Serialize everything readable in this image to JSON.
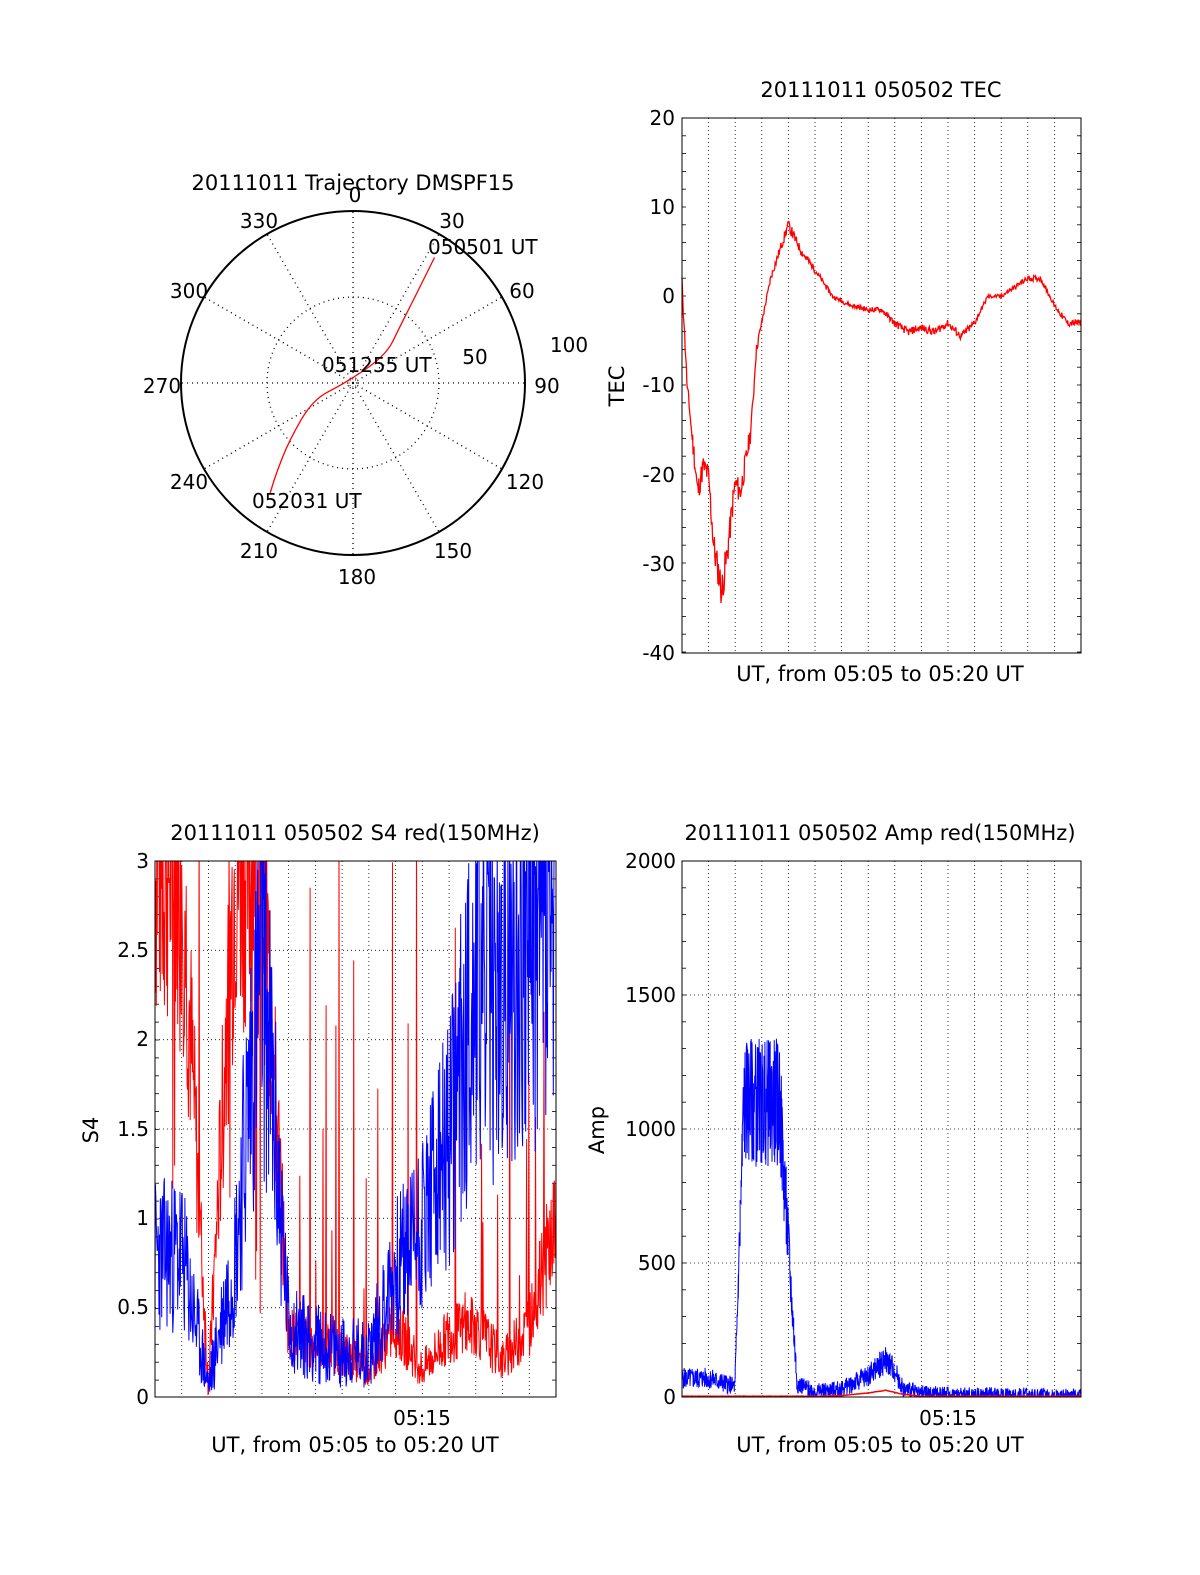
{
  "colors": {
    "red": "#ff0000",
    "blue": "#0000ff",
    "axis": "#000000",
    "grid": "#000000"
  },
  "panels": {
    "trajectory": {
      "title": "20111011 Trajectory DMSPF15",
      "angle_labels": [
        "0",
        "30",
        "60",
        "90",
        "120",
        "150",
        "180",
        "210",
        "240",
        "270",
        "300",
        "330"
      ],
      "radius_labels": [
        "50",
        "100"
      ],
      "annotations": [
        "050501 UT",
        "051255 UT",
        "052031 UT"
      ]
    },
    "tec": {
      "title": "20111011 050502 TEC",
      "ylabel": "TEC",
      "xlabel": "UT, from 05:05 to 05:20 UT",
      "yticks": [
        "20",
        "10",
        "0",
        "-10",
        "-20",
        "-30",
        "-40"
      ]
    },
    "s4": {
      "title": "20111011 050502 S4 red(150MHz)",
      "ylabel": "S4",
      "xlabel": "UT, from 05:05 to 05:20 UT",
      "xtick": "05:15",
      "yticks": [
        "3",
        "2.5",
        "2",
        "1.5",
        "1",
        "0.5",
        "0"
      ]
    },
    "amp": {
      "title": "20111011 050502 Amp red(150MHz)",
      "ylabel": "Amp",
      "xlabel": "UT, from 05:05 to 05:20 UT",
      "xtick": "05:15",
      "yticks": [
        "2000",
        "1500",
        "1000",
        "500",
        "0"
      ]
    }
  },
  "chart_data": [
    {
      "type": "scatter",
      "title": "20111011 Trajectory DMSPF15",
      "coordinate_system": "polar (azimuth degrees clockwise from north, radius = zenith angle)",
      "radial_range": [
        0,
        100
      ],
      "series": [
        {
          "points": [
            {
              "az": 33,
              "r": 87,
              "label": "050501 UT"
            },
            {
              "az": 36,
              "r": 60
            },
            {
              "az": 40,
              "r": 42
            },
            {
              "az": 50,
              "r": 25
            },
            {
              "az": 266,
              "r": 5,
              "label": "051255 UT"
            },
            {
              "az": 248,
              "r": 25
            },
            {
              "az": 228,
              "r": 50
            },
            {
              "az": 220,
              "r": 70
            },
            {
              "az": 217,
              "r": 80,
              "label": "052031 UT"
            }
          ]
        }
      ]
    },
    {
      "type": "line",
      "title": "20111011 050502 TEC",
      "xlabel": "UT, from 05:05 to 05:20 UT",
      "ylabel": "TEC",
      "xlim": [
        "05:05",
        "05:20"
      ],
      "ylim": [
        -40,
        20
      ],
      "grid": true,
      "series": [
        {
          "x": [
            "05:05:00",
            "05:05:12",
            "05:05:36",
            "05:05:48",
            "05:06:00",
            "05:06:12",
            "05:06:30",
            "05:06:42",
            "05:07:00",
            "05:07:12",
            "05:07:36",
            "05:07:48",
            "05:08:00",
            "05:08:20",
            "05:08:40",
            "05:09:00",
            "05:09:30",
            "05:10:00",
            "05:10:40",
            "05:11:20",
            "05:12:00",
            "05:12:30",
            "05:13:00",
            "05:13:30",
            "05:14:00",
            "05:14:30",
            "05:15:00",
            "05:15:30",
            "05:16:00",
            "05:16:30",
            "05:17:00",
            "05:17:30",
            "05:18:00",
            "05:18:30",
            "05:19:00",
            "05:19:30",
            "05:20:00"
          ],
          "y": [
            2,
            -10,
            -22,
            -19,
            -20,
            -28,
            -33,
            -29,
            -21,
            -22,
            -15,
            -6,
            -3,
            2,
            5,
            8,
            5,
            3,
            0,
            -1,
            -1.5,
            -1.5,
            -3,
            -4,
            -3.5,
            -4,
            -3,
            -4.5,
            -3,
            0,
            0,
            1,
            2,
            2,
            -1,
            -3,
            -3
          ]
        }
      ]
    },
    {
      "type": "line",
      "title": "20111011 050502 S4 red(150MHz)",
      "xlabel": "UT, from 05:05 to 05:20 UT",
      "ylabel": "S4",
      "xlim": [
        "05:05",
        "05:20"
      ],
      "ylim": [
        0,
        3
      ],
      "grid": true,
      "series": [
        {
          "color": "red",
          "x": [
            "05:05:00",
            "05:06:00",
            "05:07:00",
            "05:08:00",
            "05:09:00",
            "05:10:00",
            "05:11:00",
            "05:12:00",
            "05:13:00",
            "05:14:00",
            "05:15:00",
            "05:16:00",
            "05:17:00",
            "05:18:00",
            "05:19:00",
            "05:20:00"
          ],
          "y": [
            3,
            3,
            0.05,
            3,
            3,
            0.35,
            0.3,
            0.25,
            0.15,
            0.4,
            0.15,
            0.35,
            0.4,
            0.2,
            0.4,
            1.0
          ]
        },
        {
          "color": "blue",
          "x": [
            "05:05:00",
            "05:06:00",
            "05:07:00",
            "05:08:00",
            "05:09:00",
            "05:10:00",
            "05:11:00",
            "05:12:00",
            "05:13:00",
            "05:14:00",
            "05:15:00",
            "05:16:00",
            "05:17:00",
            "05:18:00",
            "05:19:00",
            "05:20:00"
          ],
          "y": [
            0.8,
            0.8,
            0.06,
            0.8,
            2.5,
            0.4,
            0.3,
            0.25,
            0.25,
            0.7,
            1.0,
            1.4,
            2.4,
            2.2,
            2.6,
            2.6
          ]
        }
      ]
    },
    {
      "type": "line",
      "title": "20111011 050502 Amp red(150MHz)",
      "xlabel": "UT, from 05:05 to 05:20 UT",
      "ylabel": "Amp",
      "xlim": [
        "05:05",
        "05:20"
      ],
      "ylim": [
        0,
        2000
      ],
      "grid": true,
      "series": [
        {
          "color": "blue",
          "x": [
            "05:05:00",
            "05:06:00",
            "05:07:00",
            "05:07:20",
            "05:08:00",
            "05:08:40",
            "05:09:20",
            "05:10:00",
            "05:11:00",
            "05:12:00",
            "05:12:40",
            "05:13:00",
            "05:13:20",
            "05:14:00",
            "05:15:00",
            "05:16:00",
            "05:17:00",
            "05:18:00",
            "05:19:00",
            "05:20:00"
          ],
          "y": [
            70,
            70,
            40,
            1100,
            1100,
            1100,
            50,
            20,
            30,
            80,
            140,
            100,
            30,
            15,
            10,
            10,
            8,
            8,
            5,
            5
          ]
        },
        {
          "color": "red",
          "x": [
            "05:05:00",
            "05:06:00",
            "05:07:00",
            "05:08:00",
            "05:09:00",
            "05:10:00",
            "05:11:00",
            "05:12:00",
            "05:12:40",
            "05:13:20",
            "05:14:00",
            "05:15:00",
            "05:16:00",
            "05:17:00",
            "05:18:00",
            "05:19:00",
            "05:20:00"
          ],
          "y": [
            3,
            3,
            3,
            3,
            3,
            3,
            5,
            15,
            25,
            10,
            3,
            3,
            3,
            3,
            3,
            3,
            3
          ]
        }
      ]
    }
  ]
}
